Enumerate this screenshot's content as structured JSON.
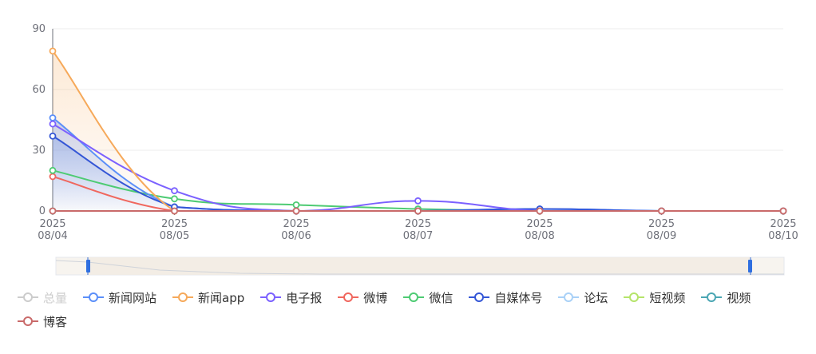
{
  "chart_data": {
    "type": "line",
    "x": [
      "2025\n08/04",
      "2025\n08/05",
      "2025\n08/06",
      "2025\n08/07",
      "2025\n08/08",
      "2025\n08/09",
      "2025\n08/10"
    ],
    "ylim": [
      0,
      90
    ],
    "yticks": [
      0,
      30,
      60,
      90
    ],
    "grid": true,
    "legend_position": "bottom",
    "series": [
      {
        "name": "总量",
        "color": "#cccccc",
        "enabled": false,
        "values": [
          null,
          null,
          null,
          null,
          null,
          null,
          null
        ]
      },
      {
        "name": "新闻网站",
        "color": "#5b8ff9",
        "enabled": true,
        "values": [
          46,
          2,
          0,
          0,
          1,
          0,
          0
        ]
      },
      {
        "name": "新闻app",
        "color": "#f6a95a",
        "enabled": true,
        "values": [
          79,
          0,
          0,
          0,
          0,
          0,
          0
        ]
      },
      {
        "name": "电子报",
        "color": "#7b61ff",
        "enabled": true,
        "values": [
          43,
          10,
          0,
          5,
          0,
          0,
          0
        ]
      },
      {
        "name": "微博",
        "color": "#f0675e",
        "enabled": true,
        "values": [
          17,
          0,
          0,
          0,
          0,
          0,
          0
        ]
      },
      {
        "name": "微信",
        "color": "#4ecb73",
        "enabled": true,
        "values": [
          20,
          6,
          3,
          1,
          0,
          0,
          0
        ]
      },
      {
        "name": "自媒体号",
        "color": "#3456d6",
        "enabled": true,
        "values": [
          37,
          2,
          0,
          0,
          1,
          0,
          0
        ]
      },
      {
        "name": "论坛",
        "color": "#a9d1f7",
        "enabled": true,
        "values": [
          0,
          0,
          0,
          0,
          0,
          0,
          0
        ]
      },
      {
        "name": "短视频",
        "color": "#b5e46a",
        "enabled": true,
        "values": [
          0,
          0,
          0,
          0,
          0,
          0,
          0
        ]
      },
      {
        "name": "视频",
        "color": "#4aa6b3",
        "enabled": true,
        "values": [
          0,
          0,
          0,
          0,
          0,
          0,
          0
        ]
      },
      {
        "name": "博客",
        "color": "#c96a6a",
        "enabled": true,
        "values": [
          0,
          0,
          0,
          0,
          0,
          0,
          0
        ]
      }
    ]
  },
  "data_zoom": {
    "start_percent": 0,
    "end_percent": 100
  }
}
